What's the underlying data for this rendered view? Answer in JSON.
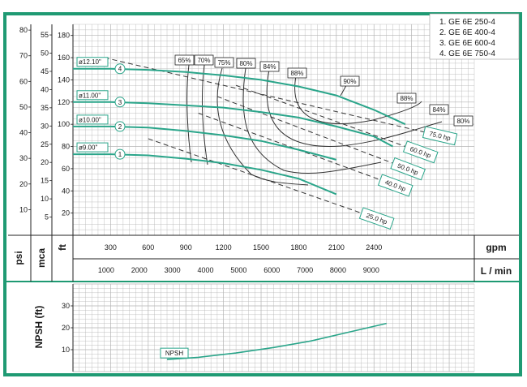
{
  "colors": {
    "frame": "#1f9a73",
    "curve": "#2aa58a",
    "ink": "#222222",
    "grid": "#b3b3b3"
  },
  "legend": [
    "1. GE 6E 250-4",
    "2. GE 6E 400-4",
    "3. GE 6E 600-4",
    "4. GE 6E 750-4"
  ],
  "unit_labels": {
    "psi": "psi",
    "mca": "mca",
    "ft": "ft",
    "gpm": "gpm",
    "lmin": "L / min",
    "npsh_axis": "NPSH (ft)"
  },
  "chart_data": [
    {
      "type": "line",
      "title": "",
      "xlabel": "gpm",
      "xlabel_secondary": "L / min",
      "ylabel": "ft",
      "xlim": [
        0,
        3200
      ],
      "ylim": [
        0,
        190
      ],
      "x_ticks": [
        300,
        600,
        900,
        1200,
        1500,
        1800,
        2100,
        2400
      ],
      "x_ticks_secondary": [
        1000,
        2000,
        3000,
        4000,
        5000,
        6000,
        7000,
        8000,
        9000
      ],
      "y_ticks_ft": [
        20,
        40,
        60,
        80,
        100,
        120,
        140,
        160,
        180
      ],
      "y_ticks_mca": [
        5,
        10,
        15,
        20,
        25,
        30,
        35,
        40,
        45,
        50,
        55
      ],
      "y_ticks_psi": [
        10,
        20,
        30,
        40,
        50,
        60,
        70,
        80
      ],
      "grid": true,
      "series": [
        {
          "name": "1",
          "diameter_label": "ø9.00\"",
          "x": [
            0,
            300,
            600,
            900,
            1200,
            1500,
            1800,
            2100
          ],
          "y": [
            73,
            73,
            72,
            69,
            65,
            59,
            51,
            37
          ]
        },
        {
          "name": "2",
          "diameter_label": "ø10.00\"",
          "x": [
            0,
            300,
            600,
            900,
            1200,
            1500,
            1800,
            2100
          ],
          "y": [
            98,
            98,
            97,
            94,
            90,
            85,
            77,
            68
          ]
        },
        {
          "name": "3",
          "diameter_label": "ø11.00\"",
          "x": [
            0,
            300,
            600,
            900,
            1200,
            1500,
            1800,
            2100,
            2400,
            2550
          ],
          "y": [
            120,
            120,
            119,
            117,
            115,
            111,
            106,
            98,
            89,
            80
          ]
        },
        {
          "name": "4",
          "diameter_label": "ø12.10\"",
          "x": [
            0,
            300,
            600,
            900,
            1200,
            1500,
            1800,
            2100,
            2400,
            2650
          ],
          "y": [
            150,
            150,
            149,
            147,
            144,
            140,
            134,
            126,
            113,
            100
          ]
        }
      ],
      "efficiency_labels": [
        "65%",
        "70%",
        "75%",
        "80%",
        "84%",
        "88%",
        "90%",
        "88%",
        "84%",
        "80%"
      ],
      "power_lines": [
        {
          "label": "25.0 hp",
          "x": [
            600,
            2300
          ],
          "y": [
            87,
            20
          ]
        },
        {
          "label": "40.0 hp",
          "x": [
            1000,
            2450
          ],
          "y": [
            110,
            50
          ]
        },
        {
          "label": "50.0 hp",
          "x": [
            1150,
            2550
          ],
          "y": [
            125,
            65
          ]
        },
        {
          "label": "60.0 hp",
          "x": [
            1300,
            2650
          ],
          "y": [
            135,
            80
          ]
        },
        {
          "label": "75.0 hp",
          "x": [
            250,
            2800
          ],
          "y": [
            160,
            93
          ]
        }
      ]
    },
    {
      "type": "line",
      "title": "",
      "ylabel": "NPSH (ft)",
      "xlim": [
        0,
        3200
      ],
      "ylim": [
        0,
        40
      ],
      "y_ticks": [
        10,
        20,
        30
      ],
      "grid": true,
      "series": [
        {
          "name": "NPSH",
          "x": [
            750,
            1000,
            1300,
            1600,
            1900,
            2200,
            2500
          ],
          "y": [
            5.5,
            6.5,
            8.5,
            11,
            14,
            18,
            22
          ]
        }
      ]
    }
  ]
}
